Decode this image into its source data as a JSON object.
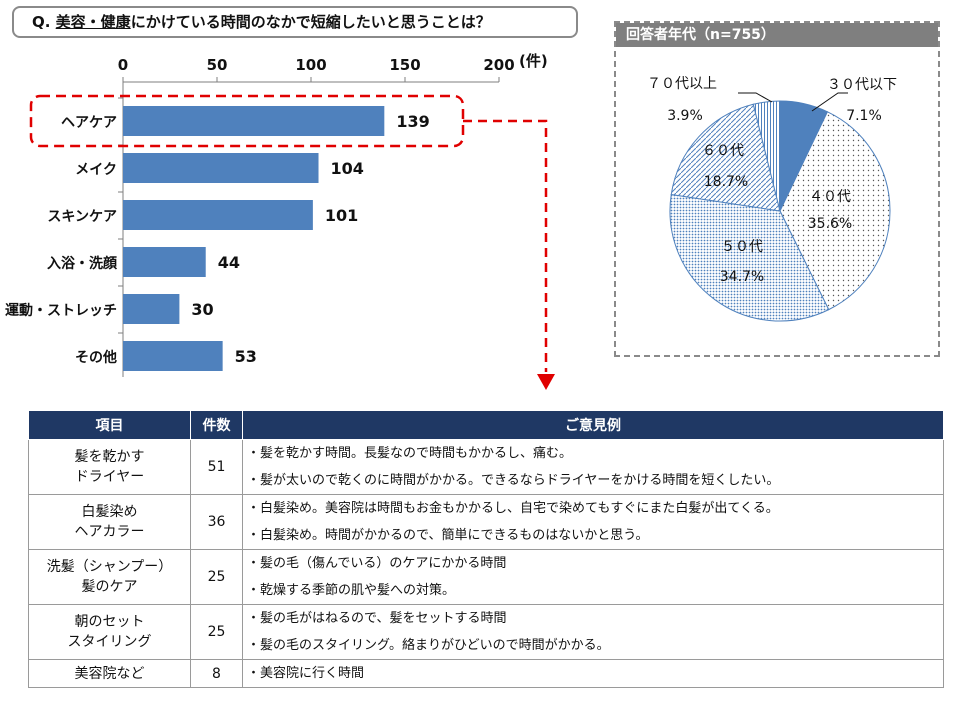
{
  "question": {
    "prefix": "Q. ",
    "highlight": "美容・健康",
    "rest": "にかけている時間のなかで短縮したいと思うことは？"
  },
  "chart_data": [
    {
      "type": "bar",
      "orientation": "horizontal",
      "categories": [
        "ヘアケア",
        "メイク",
        "スキンケア",
        "入浴・洗顔",
        "運動・ストレッチ",
        "その他"
      ],
      "values": [
        139,
        104,
        101,
        44,
        30,
        53
      ],
      "xlim": [
        0,
        200
      ],
      "xticks": [
        0,
        50,
        100,
        150,
        200
      ],
      "unit_label": "(件)",
      "highlighted_category": "ヘアケア",
      "bar_color": "#4f81bd"
    },
    {
      "type": "pie",
      "title": "回答者年代（n=755）",
      "labels": [
        "３０代以下",
        "４０代",
        "５０代",
        "６０代",
        "７０代以上"
      ],
      "values": [
        7.1,
        35.6,
        34.7,
        18.7,
        3.9
      ],
      "value_labels": [
        "7.1%",
        "35.6%",
        "34.7%",
        "18.7%",
        "3.9%"
      ]
    }
  ],
  "table": {
    "headers": [
      "項目",
      "件数",
      "ご意見例"
    ],
    "rows": [
      {
        "item": [
          "髪を乾かす",
          "ドライヤー"
        ],
        "count": "51",
        "opinions": [
          "・髪を乾かす時間。長髪なので時間もかかるし、痛む。",
          "・髪が太いので乾くのに時間がかかる。できるならドライヤーをかける時間を短くしたい。"
        ]
      },
      {
        "item": [
          "白髪染め",
          "ヘアカラー"
        ],
        "count": "36",
        "opinions": [
          "・白髪染め。美容院は時間もお金もかかるし、自宅で染めてもすぐにまた白髪が出てくる。",
          "・白髪染め。時間がかかるので、簡単にできるものはないかと思う。"
        ]
      },
      {
        "item": [
          "洗髪（シャンプー）",
          "髪のケア"
        ],
        "count": "25",
        "opinions": [
          "・髪の毛（傷んでいる）のケアにかかる時間",
          "・乾燥する季節の肌や髪への対策。"
        ]
      },
      {
        "item": [
          "朝のセット",
          "スタイリング"
        ],
        "count": "25",
        "opinions": [
          "・髪の毛がはねるので、髪をセットする時間",
          "・髪の毛のスタイリング。絡まりがひどいので時間がかかる。"
        ]
      },
      {
        "item": [
          "美容院など"
        ],
        "count": "8",
        "opinions": [
          "・美容院に行く時間"
        ]
      }
    ]
  }
}
